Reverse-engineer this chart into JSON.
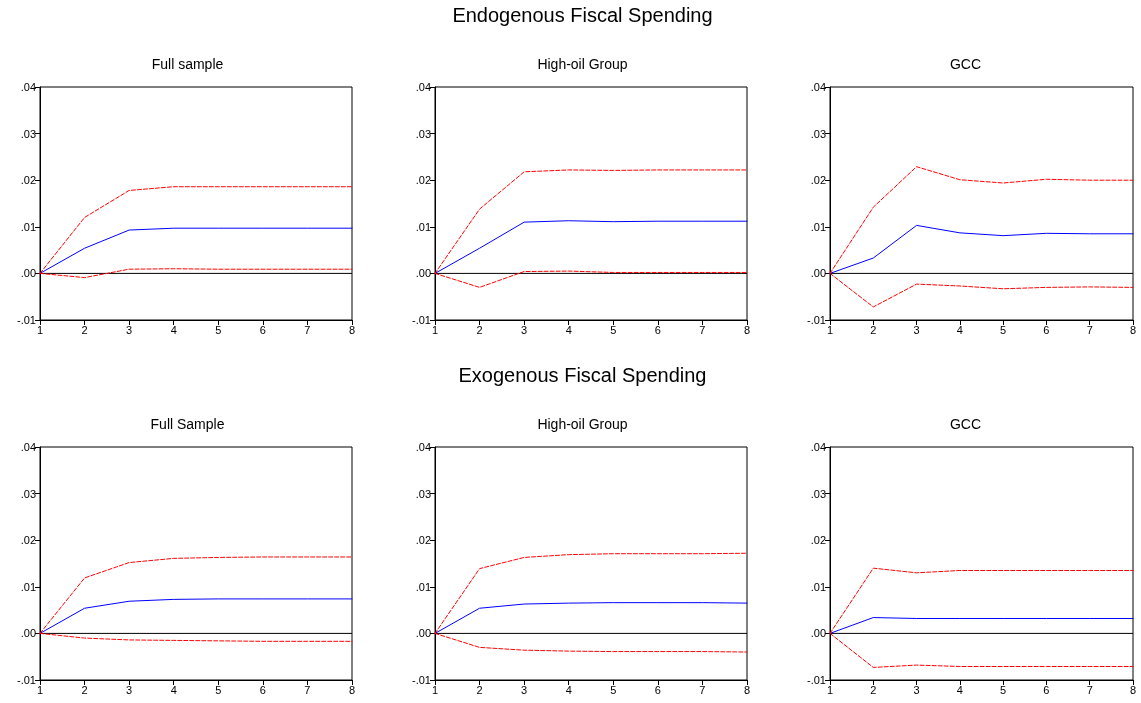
{
  "chart_data": [
    {
      "type": "line",
      "title": "Full sample",
      "x": [
        1,
        2,
        3,
        4,
        5,
        6,
        7,
        8
      ],
      "xlim": [
        1,
        8
      ],
      "xticks": [
        1,
        2,
        3,
        4,
        5,
        6,
        7,
        8
      ],
      "ylim": [
        -0.01,
        0.04
      ],
      "yticks": [
        {
          "value": -0.01,
          "label": "-.01"
        },
        {
          "value": 0,
          "label": ".00"
        },
        {
          "value": 0.01,
          "label": ".01"
        },
        {
          "value": 0.02,
          "label": ".02"
        },
        {
          "value": 0.03,
          "label": ".03"
        },
        {
          "value": 0.04,
          "label": ".04"
        }
      ],
      "grid": false,
      "ref_lines": [
        {
          "axis": "y",
          "value": 0,
          "color": "#000000"
        }
      ],
      "series": [
        {
          "color": "#0000ff",
          "line_style": "solid",
          "values": [
            0,
            0.0054,
            0.0093,
            0.0097,
            0.0097,
            0.0097,
            0.0097,
            0.0097
          ]
        },
        {
          "color": "#ff0000",
          "line_style": "dashed",
          "values": [
            0,
            0.012,
            0.0178,
            0.0186,
            0.0186,
            0.0186,
            0.0186,
            0.0186
          ]
        },
        {
          "color": "#ff0000",
          "line_style": "dashed",
          "values": [
            0,
            -0.0009,
            0.0009,
            0.001,
            0.0009,
            0.0009,
            0.0009,
            0.0009
          ]
        }
      ]
    },
    {
      "type": "line",
      "title": "High-oil Group",
      "annotations": [
        "Endogenous Fiscal Spending"
      ],
      "x": [
        1,
        2,
        3,
        4,
        5,
        6,
        7,
        8
      ],
      "xlim": [
        1,
        8
      ],
      "xticks": [
        1,
        2,
        3,
        4,
        5,
        6,
        7,
        8
      ],
      "ylim": [
        -0.01,
        0.04
      ],
      "yticks": [
        {
          "value": -0.01,
          "label": "-.01"
        },
        {
          "value": 0,
          "label": ".00"
        },
        {
          "value": 0.01,
          "label": ".01"
        },
        {
          "value": 0.02,
          "label": ".02"
        },
        {
          "value": 0.03,
          "label": ".03"
        },
        {
          "value": 0.04,
          "label": ".04"
        }
      ],
      "grid": false,
      "ref_lines": [
        {
          "axis": "y",
          "value": 0,
          "color": "#000000"
        }
      ],
      "series": [
        {
          "color": "#0000ff",
          "line_style": "solid",
          "values": [
            0,
            0.0054,
            0.011,
            0.0113,
            0.0111,
            0.0112,
            0.0112,
            0.0112
          ]
        },
        {
          "color": "#ff0000",
          "line_style": "dashed",
          "values": [
            0,
            0.0138,
            0.0218,
            0.0222,
            0.0221,
            0.0222,
            0.0222,
            0.0222
          ]
        },
        {
          "color": "#ff0000",
          "line_style": "dashed",
          "values": [
            0,
            -0.003,
            0.0004,
            0.0005,
            0.0002,
            0.0002,
            0.0002,
            0.0002
          ]
        }
      ]
    },
    {
      "type": "line",
      "title": "GCC",
      "x": [
        1,
        2,
        3,
        4,
        5,
        6,
        7,
        8
      ],
      "xlim": [
        1,
        8
      ],
      "xticks": [
        1,
        2,
        3,
        4,
        5,
        6,
        7,
        8
      ],
      "ylim": [
        -0.01,
        0.04
      ],
      "yticks": [
        {
          "value": -0.01,
          "label": "-.01"
        },
        {
          "value": 0,
          "label": ".00"
        },
        {
          "value": 0.01,
          "label": ".01"
        },
        {
          "value": 0.02,
          "label": ".02"
        },
        {
          "value": 0.03,
          "label": ".03"
        },
        {
          "value": 0.04,
          "label": ".04"
        }
      ],
      "grid": false,
      "ref_lines": [
        {
          "axis": "y",
          "value": 0,
          "color": "#000000"
        }
      ],
      "series": [
        {
          "color": "#0000ff",
          "line_style": "solid",
          "values": [
            0,
            0.0033,
            0.0103,
            0.0087,
            0.0081,
            0.0086,
            0.0085,
            0.0085
          ]
        },
        {
          "color": "#ff0000",
          "line_style": "dashed",
          "values": [
            0,
            0.0142,
            0.0229,
            0.0201,
            0.0194,
            0.0202,
            0.02,
            0.02
          ]
        },
        {
          "color": "#ff0000",
          "line_style": "dashed",
          "values": [
            0,
            -0.0072,
            -0.0023,
            -0.0027,
            -0.0033,
            -0.003,
            -0.0029,
            -0.003
          ]
        }
      ]
    },
    {
      "type": "line",
      "title": "Full Sample",
      "x": [
        1,
        2,
        3,
        4,
        5,
        6,
        7,
        8
      ],
      "xlim": [
        1,
        8
      ],
      "xticks": [
        1,
        2,
        3,
        4,
        5,
        6,
        7,
        8
      ],
      "ylim": [
        -0.01,
        0.04
      ],
      "yticks": [
        {
          "value": -0.01,
          "label": "-.01"
        },
        {
          "value": 0,
          "label": ".00"
        },
        {
          "value": 0.01,
          "label": ".01"
        },
        {
          "value": 0.02,
          "label": ".02"
        },
        {
          "value": 0.03,
          "label": ".03"
        },
        {
          "value": 0.04,
          "label": ".04"
        }
      ],
      "grid": false,
      "ref_lines": [
        {
          "axis": "y",
          "value": 0,
          "color": "#000000"
        }
      ],
      "series": [
        {
          "color": "#0000ff",
          "line_style": "solid",
          "values": [
            0,
            0.0054,
            0.0069,
            0.0073,
            0.0074,
            0.0074,
            0.0074,
            0.0074
          ]
        },
        {
          "color": "#ff0000",
          "line_style": "dashed",
          "values": [
            0,
            0.0119,
            0.0152,
            0.0161,
            0.0163,
            0.0164,
            0.0164,
            0.0164
          ]
        },
        {
          "color": "#ff0000",
          "line_style": "dashed",
          "values": [
            0,
            -0.001,
            -0.0014,
            -0.0015,
            -0.0016,
            -0.0017,
            -0.0017,
            -0.0017
          ]
        }
      ]
    },
    {
      "type": "line",
      "title": "High-oil Group",
      "annotations": [
        "Exogenous Fiscal Spending"
      ],
      "x": [
        1,
        2,
        3,
        4,
        5,
        6,
        7,
        8
      ],
      "xlim": [
        1,
        8
      ],
      "xticks": [
        1,
        2,
        3,
        4,
        5,
        6,
        7,
        8
      ],
      "ylim": [
        -0.01,
        0.04
      ],
      "yticks": [
        {
          "value": -0.01,
          "label": "-.01"
        },
        {
          "value": 0,
          "label": ".00"
        },
        {
          "value": 0.01,
          "label": ".01"
        },
        {
          "value": 0.02,
          "label": ".02"
        },
        {
          "value": 0.03,
          "label": ".03"
        },
        {
          "value": 0.04,
          "label": ".04"
        }
      ],
      "grid": false,
      "ref_lines": [
        {
          "axis": "y",
          "value": 0,
          "color": "#000000"
        }
      ],
      "series": [
        {
          "color": "#0000ff",
          "line_style": "solid",
          "values": [
            0,
            0.0054,
            0.0063,
            0.0065,
            0.0066,
            0.0066,
            0.0066,
            0.0065
          ]
        },
        {
          "color": "#ff0000",
          "line_style": "dashed",
          "values": [
            0,
            0.0139,
            0.0163,
            0.0169,
            0.0171,
            0.0171,
            0.0171,
            0.0172
          ]
        },
        {
          "color": "#ff0000",
          "line_style": "dashed",
          "values": [
            0,
            -0.003,
            -0.0036,
            -0.0038,
            -0.0039,
            -0.0039,
            -0.0039,
            -0.004
          ]
        }
      ]
    },
    {
      "type": "line",
      "title": "GCC",
      "x": [
        1,
        2,
        3,
        4,
        5,
        6,
        7,
        8
      ],
      "xlim": [
        1,
        8
      ],
      "xticks": [
        1,
        2,
        3,
        4,
        5,
        6,
        7,
        8
      ],
      "ylim": [
        -0.01,
        0.04
      ],
      "yticks": [
        {
          "value": -0.01,
          "label": "-.01"
        },
        {
          "value": 0,
          "label": ".00"
        },
        {
          "value": 0.01,
          "label": ".01"
        },
        {
          "value": 0.02,
          "label": ".02"
        },
        {
          "value": 0.03,
          "label": ".03"
        },
        {
          "value": 0.04,
          "label": ".04"
        }
      ],
      "grid": false,
      "ref_lines": [
        {
          "axis": "y",
          "value": 0,
          "color": "#000000"
        }
      ],
      "series": [
        {
          "color": "#0000ff",
          "line_style": "solid",
          "values": [
            0,
            0.0034,
            0.0032,
            0.0032,
            0.0032,
            0.0032,
            0.0032,
            0.0032
          ]
        },
        {
          "color": "#ff0000",
          "line_style": "dashed",
          "values": [
            0,
            0.014,
            0.013,
            0.0135,
            0.0135,
            0.0135,
            0.0135,
            0.0135
          ]
        },
        {
          "color": "#ff0000",
          "line_style": "dashed",
          "values": [
            0,
            -0.0073,
            -0.0068,
            -0.0071,
            -0.0071,
            -0.0071,
            -0.0071,
            -0.0071
          ]
        }
      ]
    }
  ]
}
